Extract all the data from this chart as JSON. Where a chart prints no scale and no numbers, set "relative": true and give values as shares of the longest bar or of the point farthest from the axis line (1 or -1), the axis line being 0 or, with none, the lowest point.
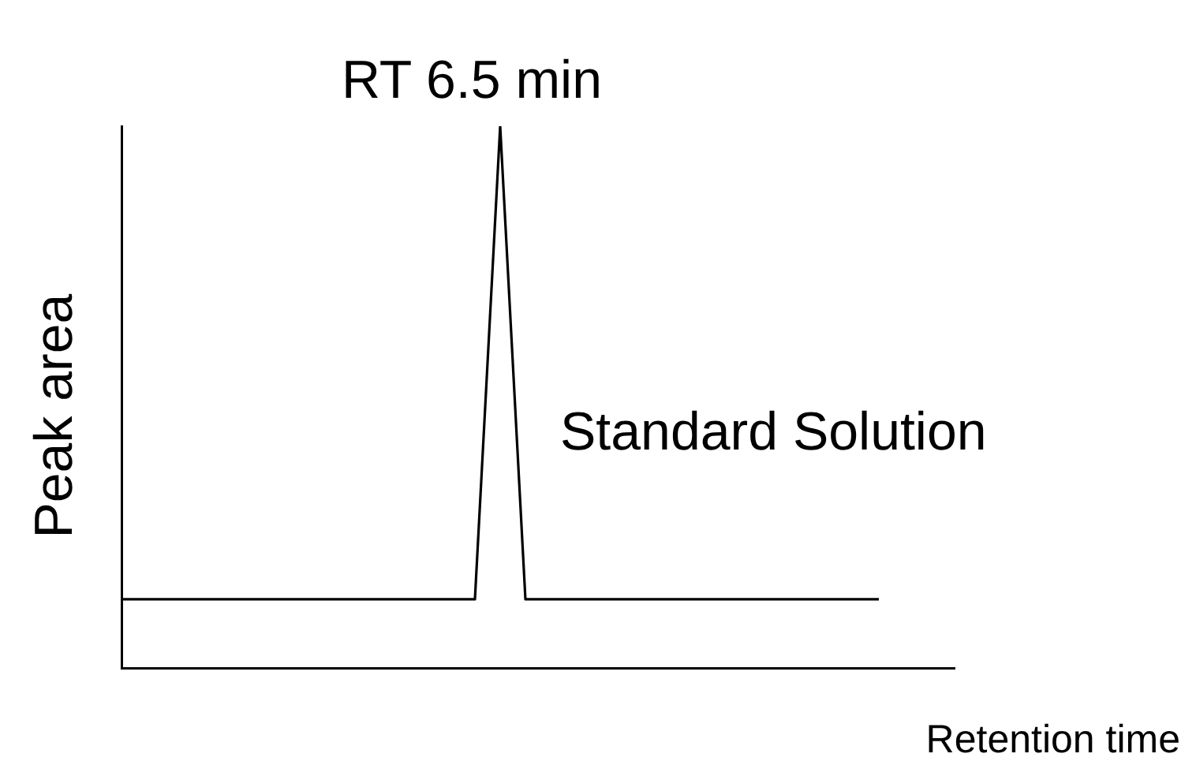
{
  "chart_data": {
    "type": "line",
    "title": "RT 6.5 min",
    "xlabel": "Retention time",
    "ylabel": "Peak area",
    "relative": true,
    "legend": false,
    "grid": false,
    "marker": "none",
    "line_style": "solid",
    "categories": [
      null,
      null,
      null,
      null,
      null,
      null,
      null,
      null,
      null,
      null,
      null,
      null,
      null,
      null,
      null,
      null,
      null,
      null,
      null,
      null,
      null,
      null,
      null,
      null,
      null,
      null,
      null,
      null,
      null,
      null,
      null,
      null,
      null,
      null
    ],
    "series": [
      {
        "name": "Standard Solution",
        "color": "#000000",
        "values": [
          0.127,
          0.127,
          0.127,
          0.127,
          0.127,
          0.127,
          0.127,
          0.127,
          0.127,
          0.127,
          0.127,
          0.127,
          0.127,
          0.127,
          0.127,
          1,
          0.127,
          0.127,
          0.127,
          0.127,
          0.127,
          0.127,
          0.127,
          0.127,
          0.127,
          0.127,
          0.127,
          0.127,
          0.127,
          0.127,
          0.127,
          null,
          null,
          null
        ]
      }
    ]
  }
}
